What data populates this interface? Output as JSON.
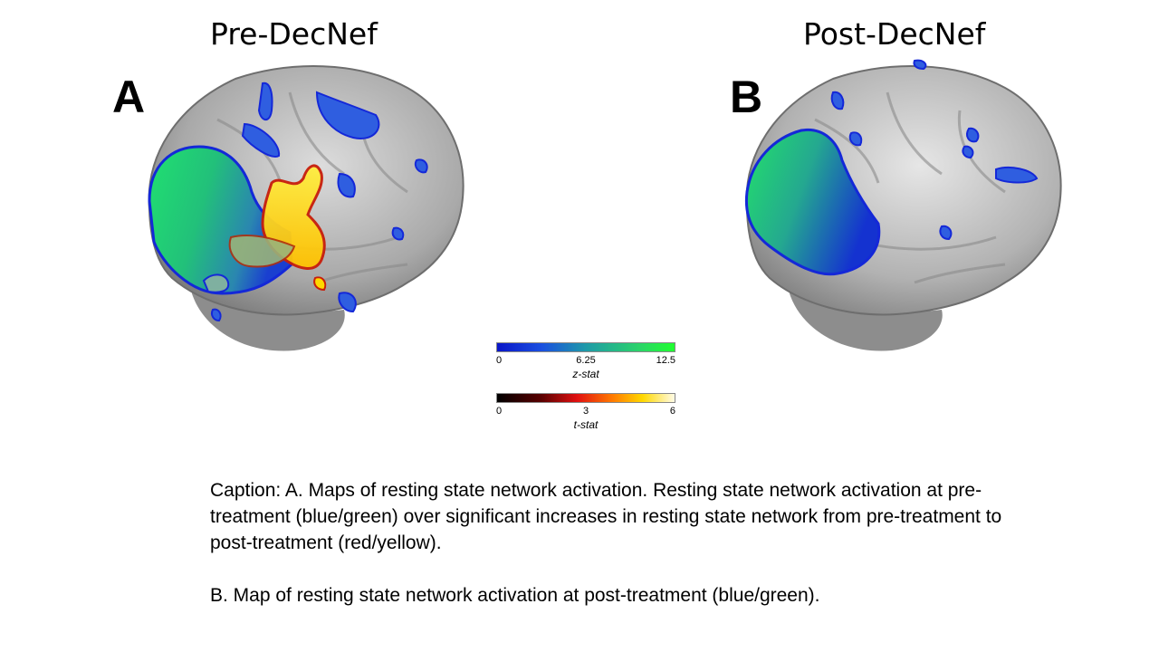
{
  "panels": {
    "pre": {
      "title": "Pre-DecNef",
      "letter": "A"
    },
    "post": {
      "title": "Post-DecNef",
      "letter": "B"
    }
  },
  "colorbars": {
    "z": {
      "label": "z-stat",
      "ticks": [
        "0",
        "6.25",
        "12.5"
      ],
      "colors": [
        "#0a16c8",
        "#1e9aa8",
        "#20ff30"
      ]
    },
    "t": {
      "label": "t-stat",
      "ticks": [
        "0",
        "3",
        "6"
      ],
      "colors": [
        "#000000",
        "#e01010",
        "#ffd800",
        "#fffbe6"
      ]
    }
  },
  "caption": {
    "a": "Caption: A. Maps of resting state network activation. Resting state network activation at pre-treatment (blue/green) over significant increases in resting state network from pre-treatment to post-treatment (red/yellow).",
    "b": "B. Map of resting state network activation at post-treatment (blue/green)."
  }
}
